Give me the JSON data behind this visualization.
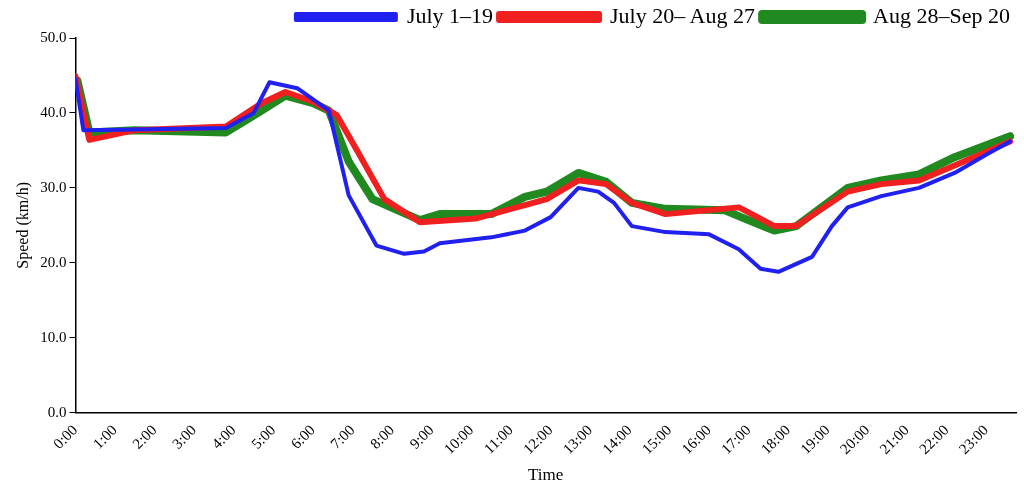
{
  "chart_data": {
    "type": "line",
    "xlabel": "Time",
    "ylabel": "Speed (km/h)",
    "xlim": [
      0,
      23.75
    ],
    "ylim": [
      0,
      50
    ],
    "xticks": [
      {
        "value": 0,
        "label": "0:00"
      },
      {
        "value": 1,
        "label": "1:00"
      },
      {
        "value": 2,
        "label": "2:00"
      },
      {
        "value": 3,
        "label": "3:00"
      },
      {
        "value": 4,
        "label": "4:00"
      },
      {
        "value": 5,
        "label": "5:00"
      },
      {
        "value": 6,
        "label": "6:00"
      },
      {
        "value": 7,
        "label": "7:00"
      },
      {
        "value": 8,
        "label": "8:00"
      },
      {
        "value": 9,
        "label": "9:00"
      },
      {
        "value": 10,
        "label": "10:00"
      },
      {
        "value": 11,
        "label": "11:00"
      },
      {
        "value": 12,
        "label": "12:00"
      },
      {
        "value": 13,
        "label": "13:00"
      },
      {
        "value": 14,
        "label": "14:00"
      },
      {
        "value": 15,
        "label": "15:00"
      },
      {
        "value": 16,
        "label": "16:00"
      },
      {
        "value": 17,
        "label": "17:00"
      },
      {
        "value": 18,
        "label": "18:00"
      },
      {
        "value": 19,
        "label": "19:00"
      },
      {
        "value": 20,
        "label": "20:00"
      },
      {
        "value": 21,
        "label": "21:00"
      },
      {
        "value": 22,
        "label": "22:00"
      },
      {
        "value": 23,
        "label": "23:00"
      }
    ],
    "yticks": [
      {
        "value": 0,
        "label": "0.0"
      },
      {
        "value": 10,
        "label": "10.0"
      },
      {
        "value": 20,
        "label": "20.0"
      },
      {
        "value": 30,
        "label": "30.0"
      },
      {
        "value": 40,
        "label": "40.0"
      },
      {
        "value": 50,
        "label": "50.0"
      }
    ],
    "grid": false,
    "legend": "top",
    "marker": "none",
    "line_style": "solid",
    "series": [
      {
        "name": "July 1–19",
        "color": "#2020f0",
        "x": [
          0,
          0.2,
          1.5,
          3.8,
          4.5,
          4.9,
          5.6,
          6.4,
          6.9,
          7.6,
          8.3,
          8.8,
          9.2,
          10.5,
          11.35,
          12,
          12.7,
          13.2,
          13.6,
          14.05,
          14.9,
          16,
          16.75,
          17.3,
          17.75,
          18.6,
          19.1,
          19.5,
          20.35,
          21.3,
          22.2,
          23.05,
          23.6
        ],
        "values": [
          44.6,
          37.7,
          37.8,
          38,
          40,
          44.1,
          43.3,
          40.3,
          29,
          22.3,
          21.2,
          21.5,
          22.6,
          23.4,
          24.3,
          26.1,
          30,
          29.5,
          28,
          24.9,
          24.1,
          23.8,
          21.8,
          19.2,
          18.8,
          20.8,
          24.9,
          27.4,
          28.9,
          30,
          32,
          34.6,
          36.2
        ]
      },
      {
        "name": "July 20– Aug 27",
        "color": "#f02020",
        "x": [
          0,
          0.35,
          1.5,
          3.8,
          4.7,
          5.3,
          6,
          6.6,
          7.1,
          7.8,
          8.7,
          10.1,
          11.35,
          11.9,
          12.7,
          13.4,
          14.05,
          14.9,
          16.75,
          16.9,
          17.65,
          18.2,
          19.5,
          20.35,
          21.3,
          22.2,
          23.6
        ],
        "values": [
          44.9,
          36.4,
          37.7,
          38.2,
          41.3,
          42.8,
          41.5,
          39.7,
          35.1,
          28.5,
          25.4,
          25.9,
          27.7,
          28.5,
          31,
          30.5,
          28,
          26.5,
          27.4,
          27,
          24.9,
          24.9,
          29.5,
          30.5,
          31,
          33,
          36.2
        ]
      },
      {
        "name": "Aug 28–Sep 20",
        "color": "#208a20",
        "x": [
          0.05,
          0.35,
          1.5,
          3.8,
          4.7,
          5.3,
          6,
          6.4,
          6.9,
          7.5,
          8.7,
          9.2,
          10.5,
          11.35,
          11.9,
          12.7,
          13.4,
          14.05,
          14.9,
          16.4,
          16.9,
          17.65,
          18.2,
          19.5,
          20.35,
          21.3,
          22.2,
          23.6
        ],
        "values": [
          44.3,
          37.4,
          37.7,
          37.4,
          40.3,
          42.3,
          41.3,
          40.3,
          33.5,
          28.5,
          25.7,
          26.5,
          26.5,
          28.8,
          29.5,
          32,
          30.8,
          28,
          27.2,
          27,
          25.9,
          24.3,
          24.9,
          30,
          31,
          31.8,
          34.1,
          36.9
        ]
      }
    ]
  }
}
